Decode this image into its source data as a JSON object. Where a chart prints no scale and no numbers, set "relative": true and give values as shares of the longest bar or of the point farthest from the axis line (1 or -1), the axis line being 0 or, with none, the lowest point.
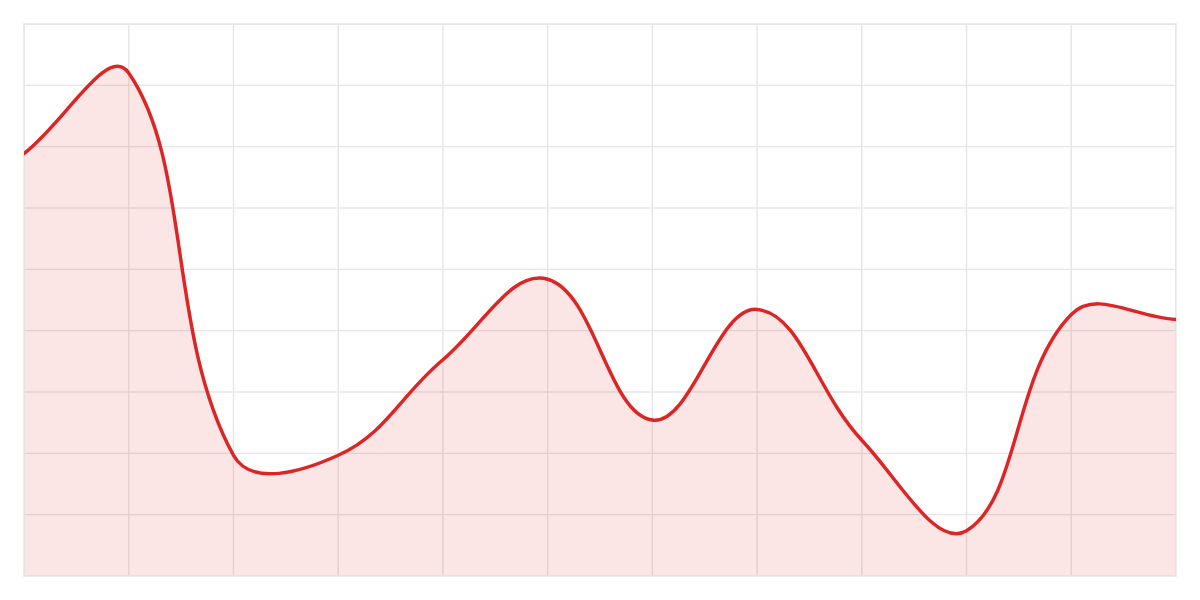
{
  "chart_data": {
    "type": "area",
    "relative": true,
    "grid": true,
    "line_style": "solid",
    "categories": [
      null,
      null,
      null,
      null,
      null,
      null,
      null,
      null,
      null,
      null,
      null,
      null
    ],
    "series": [
      {
        "color": "#dc2626",
        "values": [
          0.84,
          1,
          0.24,
          0.24,
          0.43,
          0.59,
          0.31,
          0.53,
          0.27,
          0.09,
          0.52,
          0.51
        ]
      }
    ]
  }
}
